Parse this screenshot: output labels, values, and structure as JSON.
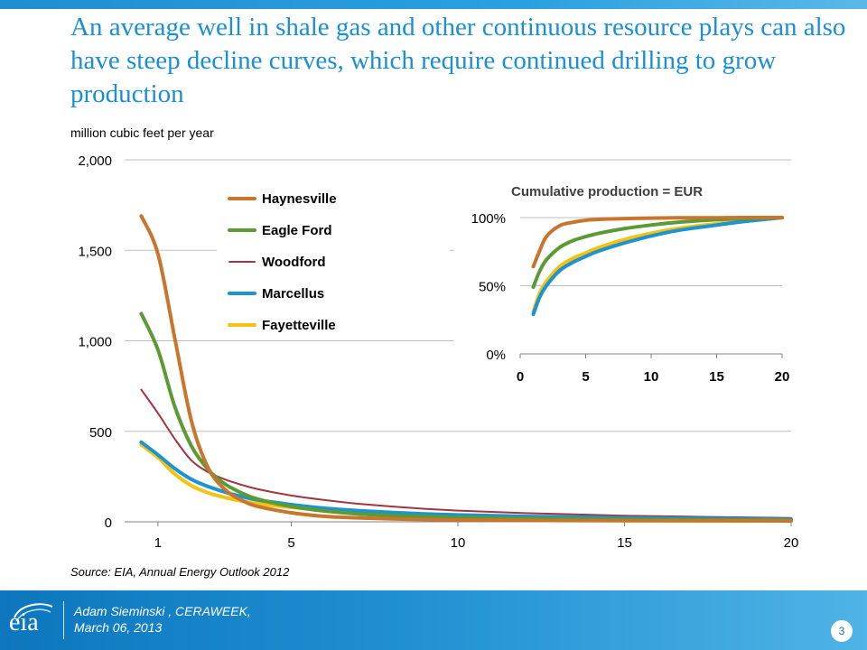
{
  "slide": {
    "title": "An average well in shale gas and other continuous resource plays can also have steep decline curves, which require continued drilling to grow production",
    "units": "million cubic feet per year",
    "source": "Source:  EIA, Annual Energy Outlook 2012",
    "presenter_line1": "Adam Sieminski , CERAWEEK,",
    "presenter_line2": "March 06, 2013",
    "page_number": "3",
    "logo_text": "eia"
  },
  "colors": {
    "Haynesville": "#c8762e",
    "Eagle Ford": "#5b9a35",
    "Woodford": "#a2353f",
    "Marcellus": "#1c94d2",
    "Fayetteville": "#f5c211"
  },
  "chart_data": [
    {
      "type": "line",
      "title": "",
      "xlabel": "",
      "ylabel": "million cubic feet per year",
      "xlim": [
        0,
        20
      ],
      "ylim": [
        0,
        2000
      ],
      "xticks": [
        1,
        5,
        10,
        15,
        20
      ],
      "yticks": [
        0,
        500,
        1000,
        1500,
        2000
      ],
      "ytick_labels": [
        "0",
        "500",
        "1,000",
        "1,500",
        "2,000"
      ],
      "grid": "horizontal",
      "legend_position": "top-left",
      "x": [
        0.5,
        1,
        1.5,
        2,
        2.5,
        3,
        3.5,
        4,
        5,
        6,
        7,
        8,
        9,
        10,
        12,
        15,
        20
      ],
      "series": [
        {
          "name": "Haynesville",
          "values": [
            1690,
            1480,
            1020,
            560,
            300,
            180,
            120,
            85,
            50,
            30,
            22,
            16,
            13,
            10,
            8,
            6,
            5
          ]
        },
        {
          "name": "Eagle Ford",
          "values": [
            1150,
            950,
            640,
            420,
            290,
            210,
            160,
            125,
            85,
            60,
            44,
            35,
            29,
            24,
            18,
            13,
            9
          ]
        },
        {
          "name": "Woodford",
          "values": [
            730,
            600,
            460,
            340,
            275,
            235,
            205,
            180,
            145,
            120,
            100,
            85,
            72,
            62,
            48,
            34,
            21
          ]
        },
        {
          "name": "Marcellus",
          "values": [
            440,
            370,
            295,
            235,
            195,
            165,
            140,
            120,
            95,
            75,
            62,
            52,
            44,
            38,
            30,
            22,
            14
          ]
        },
        {
          "name": "Fayetteville",
          "values": [
            425,
            355,
            265,
            200,
            160,
            135,
            115,
            100,
            80,
            65,
            54,
            46,
            39,
            33,
            26,
            19,
            12
          ]
        }
      ]
    },
    {
      "type": "line",
      "title": "Cumulative production = EUR",
      "xlabel": "",
      "ylabel": "",
      "xlim": [
        0,
        20
      ],
      "ylim": [
        0,
        100
      ],
      "xticks": [
        0,
        5,
        10,
        15,
        20
      ],
      "yticks": [
        0,
        50,
        100
      ],
      "ytick_labels": [
        "0%",
        "50%",
        "100%"
      ],
      "grid": "horizontal",
      "x": [
        1,
        1.5,
        2,
        3,
        4,
        5,
        6,
        8,
        10,
        12,
        15,
        17,
        20
      ],
      "series": [
        {
          "name": "Haynesville",
          "values": [
            64,
            76,
            86,
            94,
            96.5,
            98,
            98.7,
            99.3,
            99.6,
            99.8,
            99.9,
            100,
            100
          ]
        },
        {
          "name": "Eagle Ford",
          "values": [
            49,
            61,
            69,
            78,
            83,
            86,
            88.5,
            92,
            94.5,
            96.5,
            98.5,
            99.3,
            100
          ]
        },
        {
          "name": "Woodford",
          "values": [
            32,
            44,
            52,
            62,
            68,
            72,
            76,
            82,
            86,
            90,
            94,
            96.5,
            100
          ]
        },
        {
          "name": "Marcellus",
          "values": [
            29,
            42,
            50,
            61,
            67,
            71.5,
            75.5,
            81.5,
            86.5,
            90.5,
            94.5,
            97,
            100
          ]
        },
        {
          "name": "Fayetteville",
          "values": [
            31,
            45,
            53,
            64,
            70,
            74,
            78,
            84,
            88.5,
            92,
            95.5,
            97.5,
            100
          ]
        }
      ]
    }
  ]
}
